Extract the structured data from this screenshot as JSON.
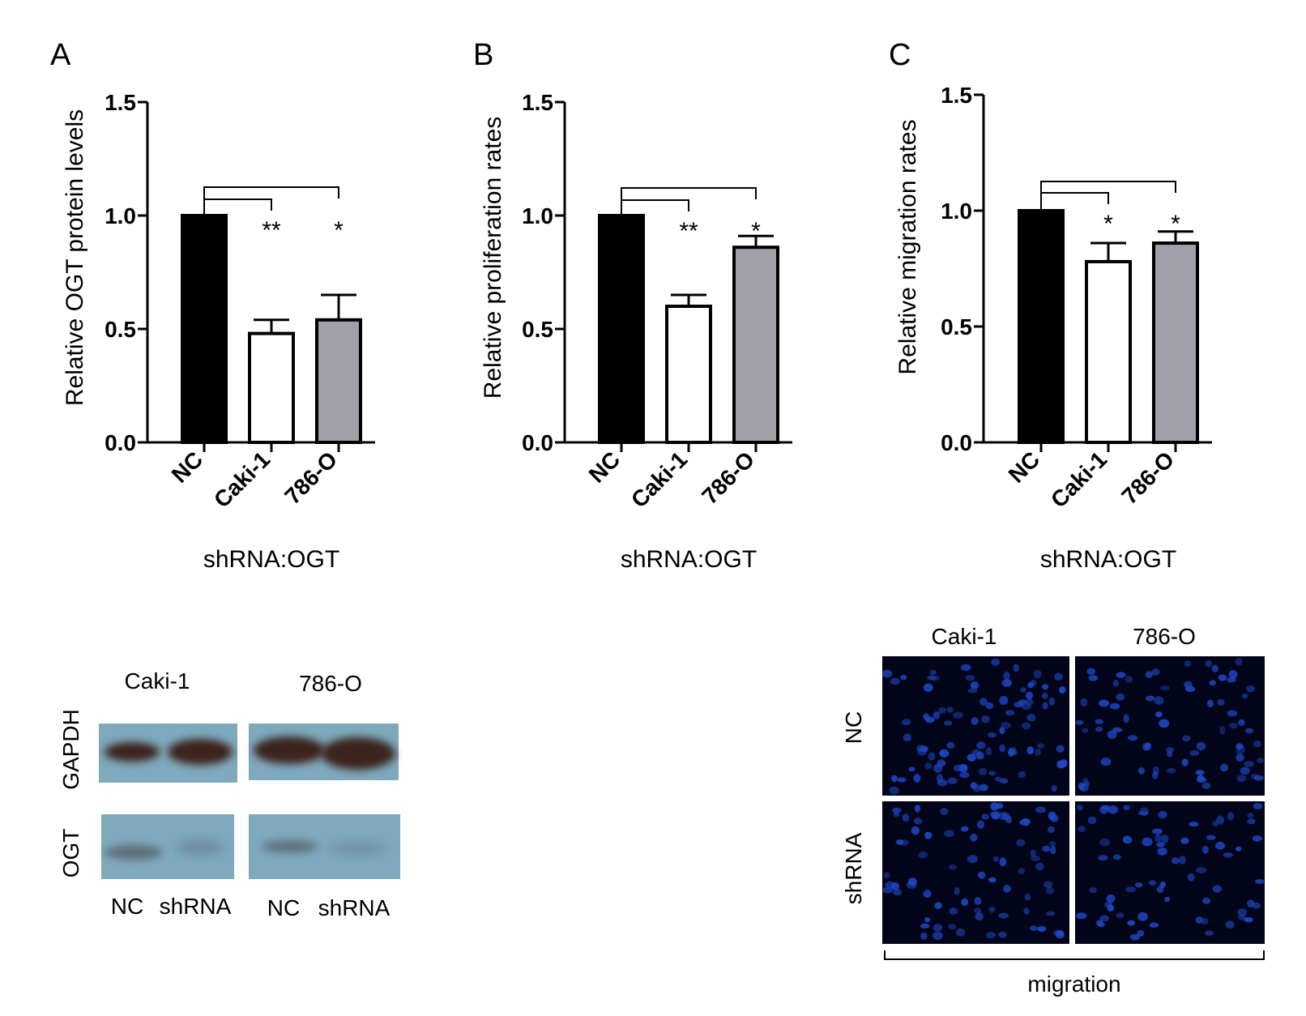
{
  "panels": [
    {
      "letter": "A",
      "chart_data": {
        "type": "bar",
        "title": "",
        "xlabel": "shRNA:OGT",
        "ylabel": "Relative OGT protein levels",
        "categories": [
          "NC",
          "Caki-1",
          "786-O"
        ],
        "values": [
          1.0,
          0.48,
          0.54
        ],
        "errors": [
          0,
          0.06,
          0.11
        ],
        "colors": [
          "#000000",
          "#ffffff",
          "#a19fa8"
        ],
        "ylim": [
          0,
          1.5
        ],
        "yticks": [
          "0.0",
          "0.5",
          "1.0",
          "1.5"
        ],
        "significance": [
          {
            "from": "NC",
            "to": "Caki-1",
            "label": "**"
          },
          {
            "from": "NC",
            "to": "786-O",
            "label": "*"
          }
        ]
      }
    },
    {
      "letter": "B",
      "chart_data": {
        "type": "bar",
        "title": "",
        "xlabel": "shRNA:OGT",
        "ylabel": "Relative proliferation rates",
        "categories": [
          "NC",
          "Caki-1",
          "786-O"
        ],
        "values": [
          1.0,
          0.6,
          0.86
        ],
        "errors": [
          0,
          0.05,
          0.05
        ],
        "colors": [
          "#000000",
          "#ffffff",
          "#a19fa8"
        ],
        "ylim": [
          0,
          1.5
        ],
        "yticks": [
          "0.0",
          "0.5",
          "1.0",
          "1.5"
        ],
        "significance": [
          {
            "from": "NC",
            "to": "Caki-1",
            "label": "**"
          },
          {
            "from": "NC",
            "to": "786-O",
            "label": "*"
          }
        ]
      }
    },
    {
      "letter": "C",
      "chart_data": {
        "type": "bar",
        "title": "",
        "xlabel": "shRNA:OGT",
        "ylabel": "Relative migration rates",
        "categories": [
          "NC",
          "Caki-1",
          "786-O"
        ],
        "values": [
          1.0,
          0.78,
          0.86
        ],
        "errors": [
          0,
          0.08,
          0.05
        ],
        "colors": [
          "#000000",
          "#ffffff",
          "#a19fa8"
        ],
        "ylim": [
          0,
          1.5
        ],
        "yticks": [
          "0.0",
          "0.5",
          "1.0",
          "1.5"
        ],
        "significance": [
          {
            "from": "NC",
            "to": "Caki-1",
            "label": "*"
          },
          {
            "from": "NC",
            "to": "786-O",
            "label": "*"
          }
        ]
      }
    }
  ],
  "western_blot": {
    "groups": [
      "Caki-1",
      "786-O"
    ],
    "rows": [
      "GAPDH",
      "OGT"
    ],
    "lanes": [
      "NC",
      "shRNA",
      "NC",
      "shRNA"
    ],
    "colors": {
      "membrane": "#7fa9bd",
      "gapdh_band": "#3d231d",
      "ogt_band": "#55606a"
    }
  },
  "migration": {
    "columns": [
      "Caki-1",
      "786-O"
    ],
    "rows": [
      "NC",
      "shRNA"
    ],
    "footer": "migration",
    "colors": {
      "background": "#02051a",
      "nucleus": "#1f47c4"
    }
  }
}
